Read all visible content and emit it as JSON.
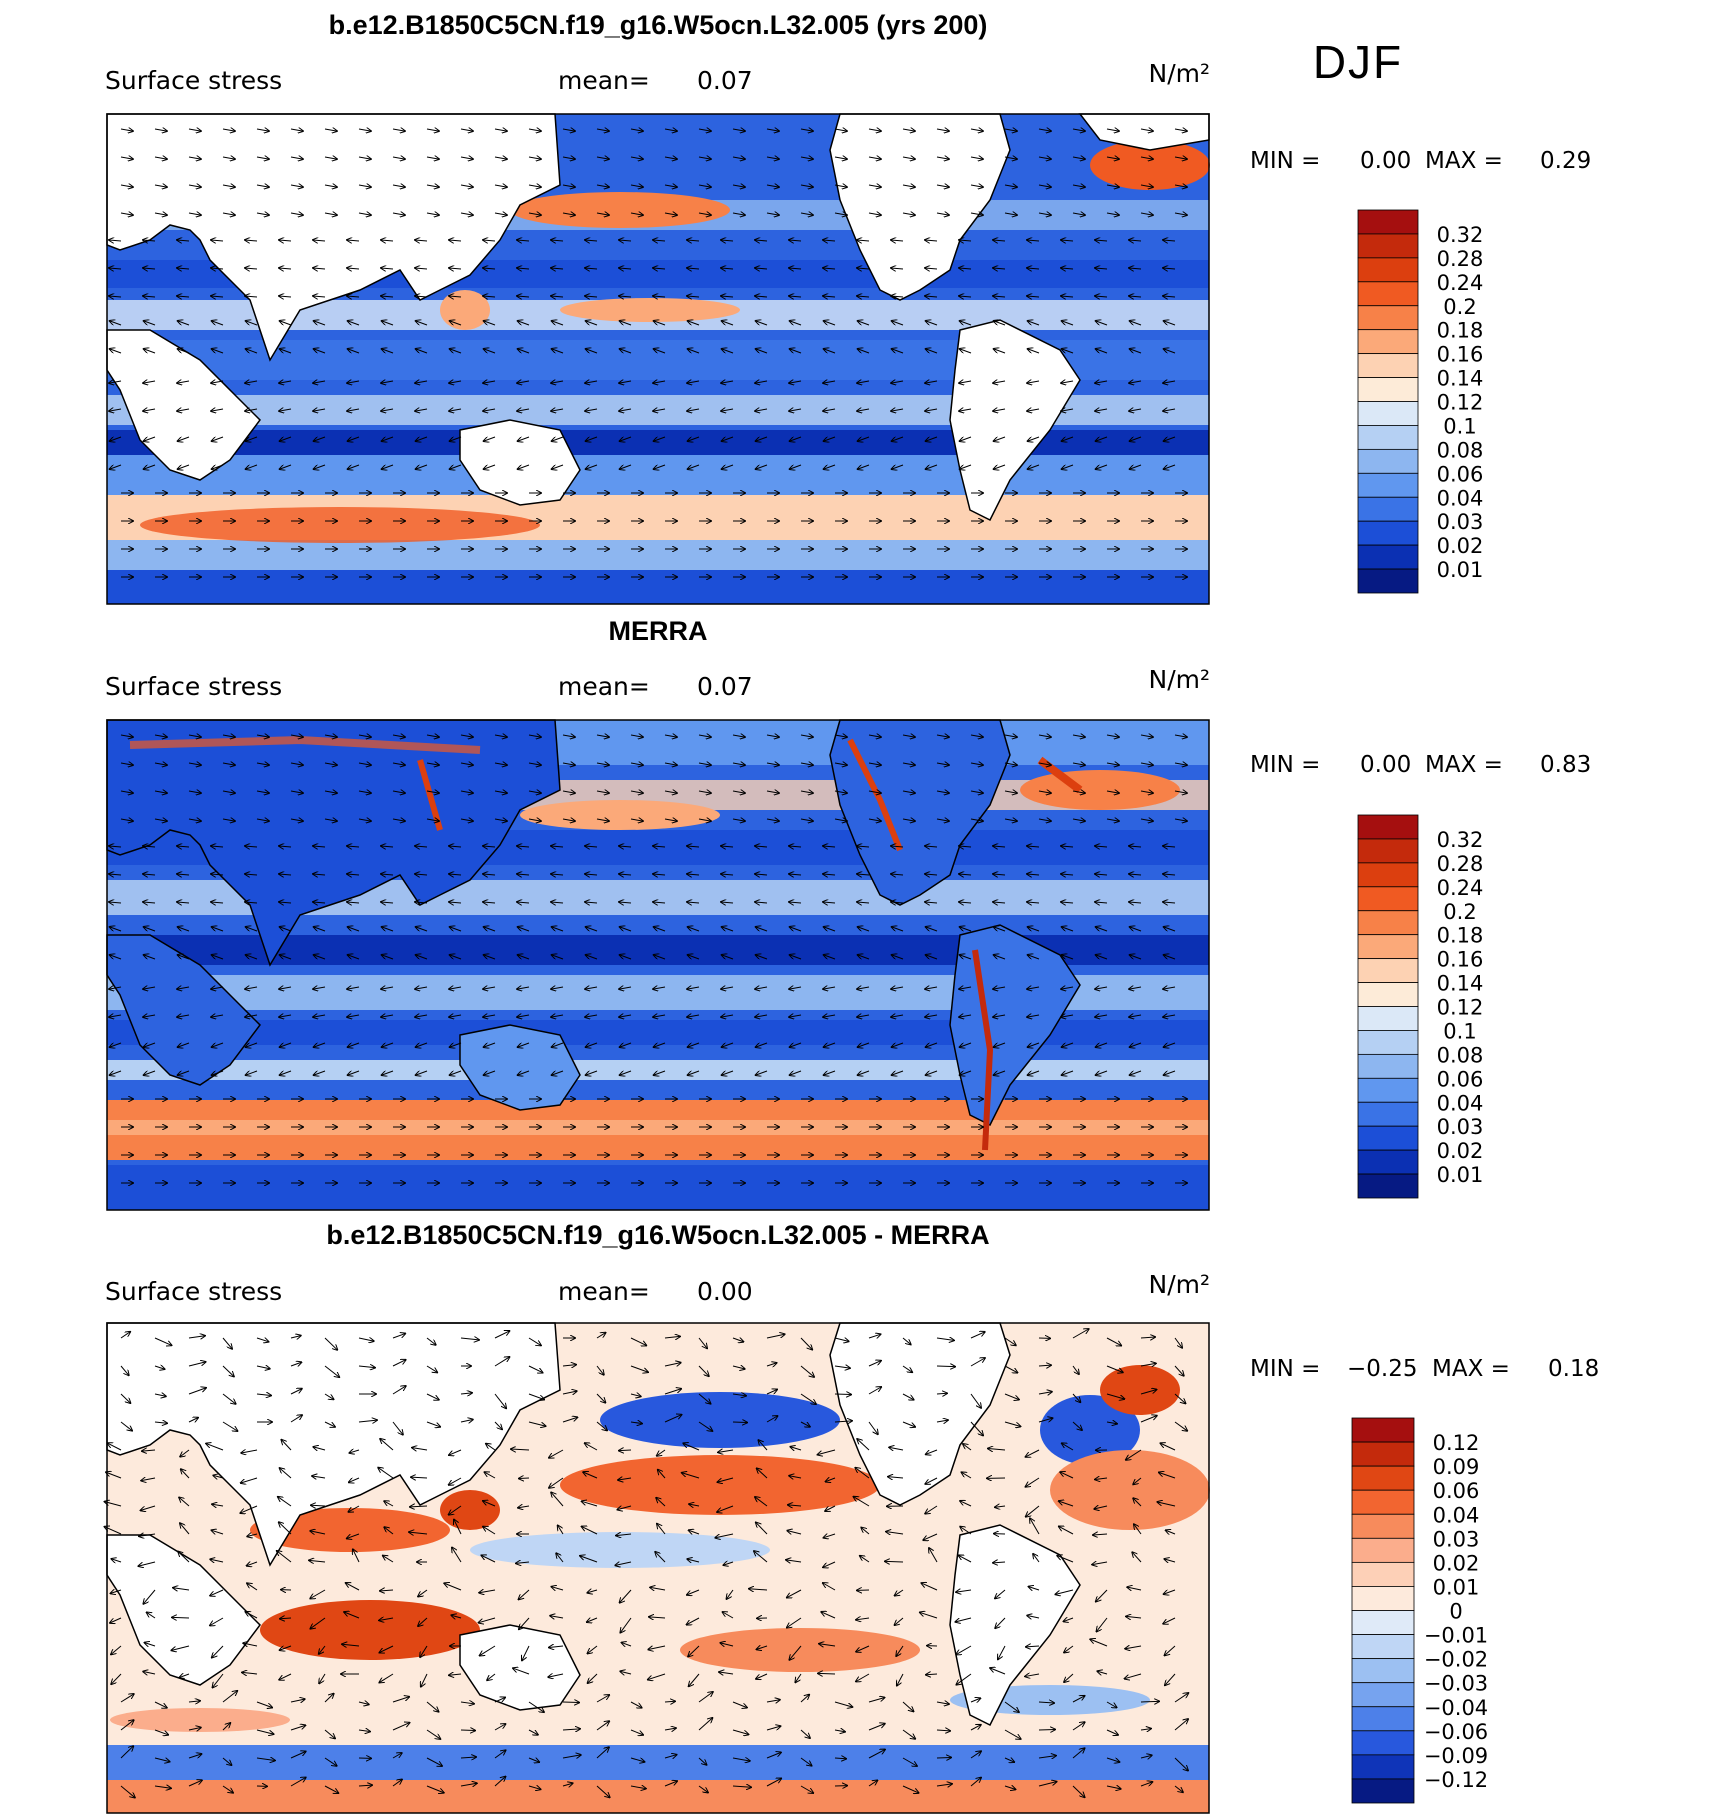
{
  "season": "DJF",
  "panels": [
    {
      "title": "b.e12.B1850C5CN.f19_g16.W5ocn.L32.005 (yrs 200)",
      "field": "Surface stress",
      "mean_label": "mean=",
      "mean": "0.07",
      "units": "N/m²",
      "min_label": "MIN =",
      "min": "0.00",
      "max_label": "MAX =",
      "max": "0.29",
      "colorbar_labels": [
        "0.32",
        "0.28",
        "0.24",
        "0.2",
        "0.18",
        "0.16",
        "0.14",
        "0.12",
        "0.1",
        "0.08",
        "0.06",
        "0.04",
        "0.03",
        "0.02",
        "0.01"
      ],
      "colorbar_colors": [
        "#a50f0f",
        "#c42a0c",
        "#dc3f0f",
        "#f05a22",
        "#f78148",
        "#fba979",
        "#fdd2b3",
        "#fdebd8",
        "#dbe8f7",
        "#b5d0f3",
        "#8db6f0",
        "#6097ef",
        "#3a73e6",
        "#1c4fd7",
        "#0b30b3",
        "#061a83"
      ],
      "projection": "global-lonlat-30E-centered"
    },
    {
      "title": "MERRA",
      "field": "Surface stress",
      "mean_label": "mean=",
      "mean": "0.07",
      "units": "N/m²",
      "min_label": "MIN =",
      "min": "0.00",
      "max_label": "MAX =",
      "max": "0.83",
      "colorbar_labels": [
        "0.32",
        "0.28",
        "0.24",
        "0.2",
        "0.18",
        "0.16",
        "0.14",
        "0.12",
        "0.1",
        "0.08",
        "0.06",
        "0.04",
        "0.03",
        "0.02",
        "0.01"
      ],
      "colorbar_colors": [
        "#a50f0f",
        "#c42a0c",
        "#dc3f0f",
        "#f05a22",
        "#f78148",
        "#fba979",
        "#fdd2b3",
        "#fdebd8",
        "#dbe8f7",
        "#b5d0f3",
        "#8db6f0",
        "#6097ef",
        "#3a73e6",
        "#1c4fd7",
        "#0b30b3",
        "#061a83"
      ],
      "projection": "global-lonlat-30E-centered"
    },
    {
      "title": "b.e12.B1850C5CN.f19_g16.W5ocn.L32.005 - MERRA",
      "field": "Surface stress",
      "mean_label": "mean=",
      "mean": "0.00",
      "units": "N/m²",
      "min_label": "MIN =",
      "min": "−0.25",
      "max_label": "MAX =",
      "max": "0.18",
      "colorbar_labels": [
        "0.12",
        "0.09",
        "0.06",
        "0.04",
        "0.03",
        "0.02",
        "0.01",
        "0",
        "−0.01",
        "−0.02",
        "−0.03",
        "−0.04",
        "−0.06",
        "−0.09",
        "−0.12"
      ],
      "colorbar_colors": [
        "#a50f0f",
        "#c42a0c",
        "#e04714",
        "#f26530",
        "#f78b5c",
        "#fbad8c",
        "#fdd0b7",
        "#fdeadc",
        "#dfeaf8",
        "#bfd6f5",
        "#9cc0f2",
        "#76a3ef",
        "#4d80e9",
        "#2858dd",
        "#0f34b8",
        "#061a83"
      ],
      "projection": "global-lonlat-30E-centered"
    }
  ]
}
